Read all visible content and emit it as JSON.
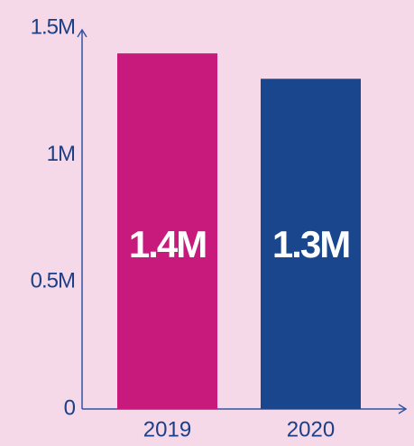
{
  "chart_data": {
    "type": "bar",
    "categories": [
      "2019",
      "2020"
    ],
    "values": [
      1400000,
      1300000
    ],
    "value_labels": [
      "1.4M",
      "1.3M"
    ],
    "colors": [
      "#c8197d",
      "#1a468e"
    ],
    "ylim": [
      0,
      1500000
    ],
    "yticks": [
      0,
      {
        "value": 500000,
        "label": "0.5M"
      },
      {
        "value": 1000000,
        "label": "1M"
      },
      {
        "value": 1500000,
        "label": "1.5M"
      }
    ],
    "grid": false
  }
}
